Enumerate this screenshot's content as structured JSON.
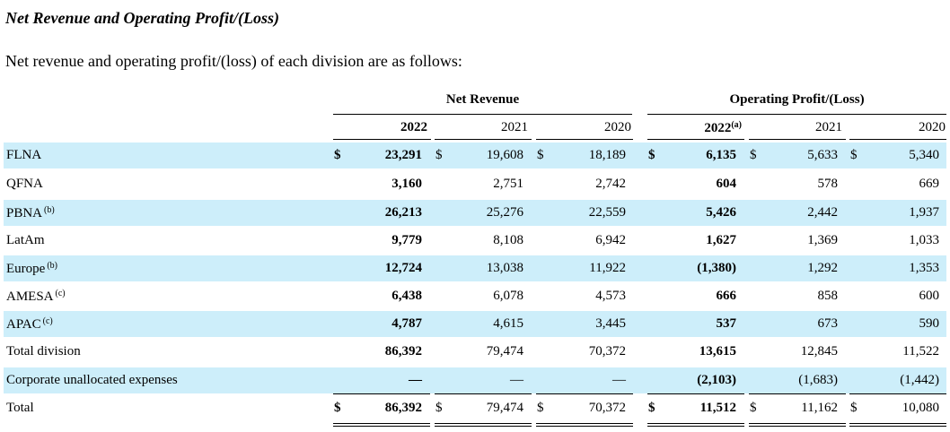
{
  "title": "Net Revenue and Operating Profit/(Loss)",
  "subtitle": "Net revenue and operating profit/(loss) of each division are as follows:",
  "groups": {
    "net_revenue": "Net Revenue",
    "operating_profit": "Operating Profit/(Loss)"
  },
  "years": {
    "nr2022": "2022",
    "nr2021": "2021",
    "nr2020": "2020",
    "op2022": "2022",
    "op2022_note": "(a)",
    "op2021": "2021",
    "op2020": "2020"
  },
  "currency": "$",
  "rows": [
    {
      "label": "FLNA",
      "note": "",
      "dollar": true,
      "shade": true,
      "v": [
        "23,291",
        "19,608",
        "18,189",
        "6,135",
        "5,633",
        "5,340"
      ]
    },
    {
      "label": "QFNA",
      "note": "",
      "dollar": false,
      "shade": false,
      "v": [
        "3,160",
        "2,751",
        "2,742",
        "604",
        "578",
        "669"
      ]
    },
    {
      "label": "PBNA",
      "note": "(b)",
      "dollar": false,
      "shade": true,
      "v": [
        "26,213",
        "25,276",
        "22,559",
        "5,426",
        "2,442",
        "1,937"
      ]
    },
    {
      "label": "LatAm",
      "note": "",
      "dollar": false,
      "shade": false,
      "v": [
        "9,779",
        "8,108",
        "6,942",
        "1,627",
        "1,369",
        "1,033"
      ]
    },
    {
      "label": "Europe",
      "note": "(b)",
      "dollar": false,
      "shade": true,
      "v": [
        "12,724",
        "13,038",
        "11,922",
        "(1,380)",
        "1,292",
        "1,353"
      ]
    },
    {
      "label": "AMESA",
      "note": "(c)",
      "dollar": false,
      "shade": false,
      "v": [
        "6,438",
        "6,078",
        "4,573",
        "666",
        "858",
        "600"
      ]
    },
    {
      "label": "APAC",
      "note": "(c)",
      "dollar": false,
      "shade": true,
      "v": [
        "4,787",
        "4,615",
        "3,445",
        "537",
        "673",
        "590"
      ]
    },
    {
      "label": "Total division",
      "note": "",
      "dollar": false,
      "shade": false,
      "v": [
        "86,392",
        "79,474",
        "70,372",
        "13,615",
        "12,845",
        "11,522"
      ]
    },
    {
      "label": "Corporate unallocated expenses",
      "note": "",
      "dollar": false,
      "shade": true,
      "v": [
        "—",
        "—",
        "—",
        "(2,103)",
        "(1,683)",
        "(1,442)"
      ]
    },
    {
      "label": "Total",
      "note": "",
      "dollar": true,
      "shade": false,
      "v": [
        "86,392",
        "79,474",
        "70,372",
        "11,512",
        "11,162",
        "10,080"
      ]
    }
  ]
}
